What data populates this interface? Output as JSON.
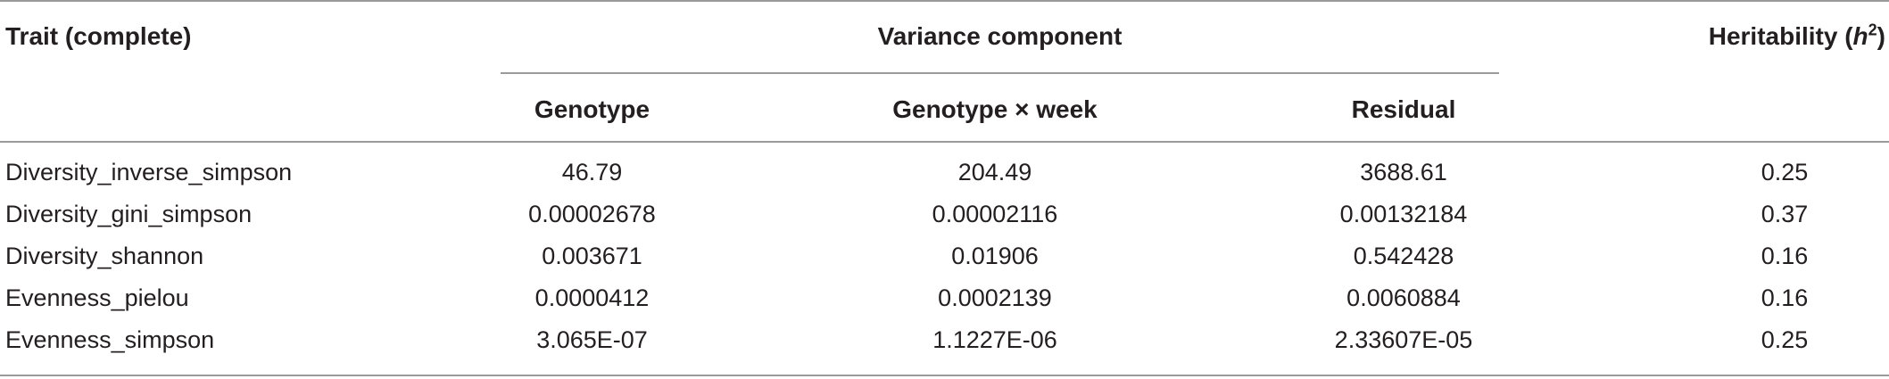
{
  "header": {
    "trait": "Trait (complete)",
    "variance_component": "Variance component",
    "heritability_prefix": "Heritability (",
    "heritability_h": "h",
    "heritability_sup": "2",
    "heritability_suffix": ")",
    "genotype": "Genotype",
    "genotype_week": "Genotype × week",
    "residual": "Residual"
  },
  "rows": [
    {
      "trait": "Diversity_inverse_simpson",
      "genotype": "46.79",
      "genotype_week": "204.49",
      "residual": "3688.61",
      "heritability": "0.25"
    },
    {
      "trait": "Diversity_gini_simpson",
      "genotype": "0.00002678",
      "genotype_week": "0.00002116",
      "residual": "0.00132184",
      "heritability": "0.37"
    },
    {
      "trait": "Diversity_shannon",
      "genotype": "0.003671",
      "genotype_week": "0.01906",
      "residual": "0.542428",
      "heritability": "0.16"
    },
    {
      "trait": "Evenness_pielou",
      "genotype": "0.0000412",
      "genotype_week": "0.0002139",
      "residual": "0.0060884",
      "heritability": "0.16"
    },
    {
      "trait": "Evenness_simpson",
      "genotype": "3.065E-07",
      "genotype_week": "1.1227E-06",
      "residual": "2.33607E-05",
      "heritability": "0.25"
    }
  ]
}
